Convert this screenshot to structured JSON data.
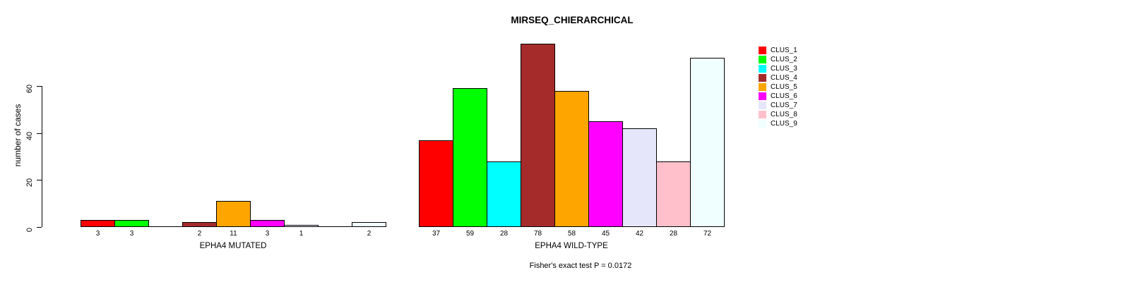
{
  "title": "MIRSEQ_CHIERARCHICAL",
  "y_axis": {
    "label": "number of cases",
    "ticks": [
      0,
      20,
      40,
      60
    ]
  },
  "footnote": "Fisher's exact test P = 0.0172",
  "legend": {
    "items": [
      {
        "label": "CLUS_1",
        "color": "#FF0000"
      },
      {
        "label": "CLUS_2",
        "color": "#00FF00"
      },
      {
        "label": "CLUS_3",
        "color": "#00FFFF"
      },
      {
        "label": "CLUS_4",
        "color": "#A52A2A"
      },
      {
        "label": "CLUS_5",
        "color": "#FFA500"
      },
      {
        "label": "CLUS_6",
        "color": "#FF00FF"
      },
      {
        "label": "CLUS_7",
        "color": "#E6E6FA"
      },
      {
        "label": "CLUS_8",
        "color": "#FFC0CB"
      },
      {
        "label": "CLUS_9",
        "color": "#F0FFFF"
      }
    ]
  },
  "chart_data": {
    "type": "bar",
    "title": "MIRSEQ_CHIERARCHICAL",
    "ylabel": "number of cases",
    "ylim": [
      0,
      80
    ],
    "yticks": [
      0,
      20,
      40,
      60
    ],
    "grid": false,
    "legend_position": "top-right",
    "series": [
      "CLUS_1",
      "CLUS_2",
      "CLUS_3",
      "CLUS_4",
      "CLUS_5",
      "CLUS_6",
      "CLUS_7",
      "CLUS_8",
      "CLUS_9"
    ],
    "colors": [
      "#FF0000",
      "#00FF00",
      "#00FFFF",
      "#A52A2A",
      "#FFA500",
      "#FF00FF",
      "#E6E6FA",
      "#FFC0CB",
      "#F0FFFF"
    ],
    "groups": [
      {
        "label": "EPHA4 MUTATED",
        "values": [
          3,
          3,
          0,
          2,
          11,
          3,
          1,
          0,
          2
        ]
      },
      {
        "label": "EPHA4 WILD-TYPE",
        "values": [
          37,
          59,
          28,
          78,
          58,
          45,
          42,
          28,
          72
        ]
      }
    ],
    "bar_label_rule": "value shown under each bar; zero-count bars show no bar and no label",
    "annotation": "Fisher's exact test P = 0.0172"
  }
}
